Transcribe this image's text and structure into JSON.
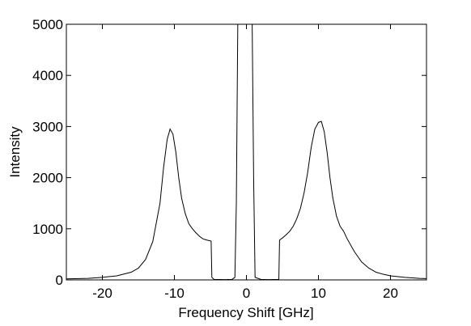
{
  "chart_data": {
    "type": "line",
    "x_label": "Frequency Shift [GHz]",
    "y_label": "Intensity",
    "x": [
      -25,
      -22,
      -20,
      -18,
      -16,
      -15,
      -14,
      -13,
      -12,
      -11.5,
      -11,
      -10.6,
      -10.2,
      -9.8,
      -9.4,
      -9,
      -8.5,
      -8,
      -7.5,
      -7,
      -6.5,
      -6,
      -5.5,
      -4.9,
      -4.8,
      -4.5,
      -3,
      -2,
      -1.6,
      -1.4,
      -1.2,
      0,
      0.8,
      1.0,
      1.2,
      2,
      3,
      4.5,
      4.6,
      5,
      5.5,
      6,
      6.5,
      7,
      7.5,
      8,
      8.5,
      9,
      9.5,
      10,
      10.4,
      10.8,
      11.2,
      11.6,
      12,
      12.5,
      13,
      13.5,
      14,
      15,
      16,
      17,
      18,
      19,
      20,
      22,
      24,
      25
    ],
    "series": [
      {
        "color": "#000000",
        "values": [
          20,
          30,
          50,
          80,
          150,
          230,
          400,
          750,
          1500,
          2200,
          2750,
          2950,
          2850,
          2500,
          2000,
          1600,
          1300,
          1100,
          1000,
          920,
          850,
          800,
          780,
          760,
          50,
          10,
          5,
          10,
          50,
          1500,
          5000,
          null,
          5000,
          2000,
          50,
          10,
          5,
          10,
          780,
          820,
          880,
          950,
          1050,
          1200,
          1400,
          1700,
          2100,
          2600,
          2950,
          3080,
          3100,
          2900,
          2500,
          2000,
          1600,
          1250,
          1050,
          950,
          800,
          550,
          350,
          230,
          150,
          110,
          80,
          50,
          30,
          25
        ]
      }
    ],
    "xlim": [
      -25,
      25
    ],
    "xticks": [
      -20,
      -10,
      0,
      10,
      20
    ],
    "ylim": [
      0,
      5000
    ],
    "yticks": [
      0,
      1000,
      2000,
      3000,
      4000,
      5000
    ],
    "grid": false
  }
}
